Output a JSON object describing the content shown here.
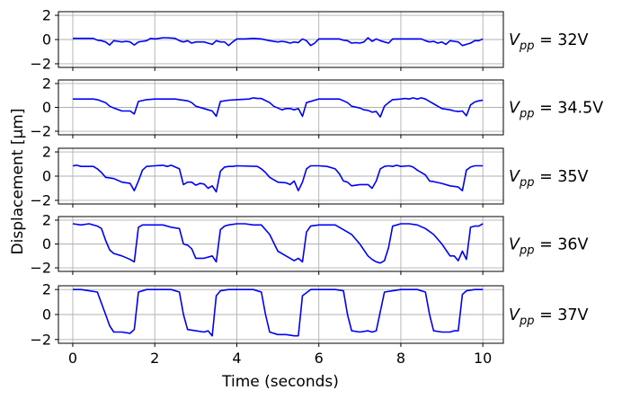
{
  "chart_data": {
    "type": "line",
    "xlabel": "Time (seconds)",
    "ylabel": "Displacement [μm]",
    "xlim": [
      -0.35,
      10.5
    ],
    "xticks": [
      0,
      2,
      4,
      6,
      8,
      10
    ],
    "ylim": [
      -2.3,
      2.3
    ],
    "yticks": [
      -2,
      0,
      2
    ],
    "ytick_labels": [
      "−2",
      "0",
      "2"
    ],
    "grid": true,
    "line_color": "#0000ff",
    "panels": [
      {
        "label_base": "V",
        "label_sub": "pp",
        "label_value": " = 32V",
        "series": {
          "x": [
            0,
            0.5,
            0.6,
            0.7,
            0.8,
            0.9,
            1.0,
            1.1,
            1.2,
            1.3,
            1.4,
            1.5,
            1.6,
            1.7,
            1.8,
            1.9,
            2.0,
            2.1,
            2.2,
            2.3,
            2.5,
            2.6,
            2.7,
            2.8,
            2.9,
            3.0,
            3.2,
            3.3,
            3.4,
            3.5,
            3.6,
            3.7,
            3.8,
            3.9,
            4.0,
            4.2,
            4.4,
            4.6,
            4.8,
            5.0,
            5.1,
            5.2,
            5.3,
            5.4,
            5.5,
            5.6,
            5.7,
            5.8,
            5.9,
            6.0,
            6.5,
            6.6,
            6.7,
            6.8,
            6.9,
            7.0,
            7.1,
            7.2,
            7.3,
            7.4,
            7.5,
            7.6,
            7.7,
            7.8,
            8.0,
            8.5,
            8.6,
            8.7,
            8.8,
            8.9,
            9.0,
            9.1,
            9.2,
            9.3,
            9.4,
            9.5,
            9.6,
            9.7,
            9.8,
            9.9,
            10.0
          ],
          "y": [
            0.1,
            0.1,
            -0.05,
            -0.1,
            -0.2,
            -0.45,
            -0.1,
            -0.15,
            -0.2,
            -0.15,
            -0.2,
            -0.45,
            -0.2,
            -0.15,
            -0.1,
            0.1,
            0.05,
            0.1,
            0.15,
            0.15,
            0.1,
            -0.1,
            -0.2,
            -0.1,
            -0.3,
            -0.2,
            -0.2,
            -0.3,
            -0.4,
            -0.1,
            -0.2,
            -0.2,
            -0.5,
            -0.2,
            0.05,
            0.05,
            0.1,
            0.05,
            -0.1,
            -0.2,
            -0.15,
            -0.2,
            -0.3,
            -0.2,
            -0.25,
            0.05,
            -0.1,
            -0.5,
            -0.3,
            0.05,
            0.05,
            -0.05,
            -0.1,
            -0.3,
            -0.25,
            -0.3,
            -0.2,
            0.15,
            -0.15,
            0.05,
            -0.1,
            -0.2,
            -0.3,
            0.05,
            0.05,
            0.05,
            -0.1,
            -0.2,
            -0.15,
            -0.3,
            -0.2,
            -0.4,
            -0.1,
            -0.15,
            -0.2,
            -0.5,
            -0.4,
            -0.3,
            -0.1,
            -0.1,
            0.05
          ]
        }
      },
      {
        "label_base": "V",
        "label_sub": "pp",
        "label_value": " = 34.5V",
        "series": {
          "x": [
            0,
            0.5,
            0.6,
            0.8,
            0.9,
            1.0,
            1.2,
            1.3,
            1.4,
            1.5,
            1.6,
            1.8,
            2.0,
            2.5,
            2.6,
            2.8,
            2.9,
            3.0,
            3.2,
            3.3,
            3.4,
            3.5,
            3.6,
            3.8,
            4.0,
            4.3,
            4.4,
            4.5,
            4.6,
            4.8,
            4.9,
            5.0,
            5.1,
            5.2,
            5.3,
            5.4,
            5.5,
            5.6,
            5.7,
            5.9,
            6.0,
            6.5,
            6.6,
            6.7,
            6.8,
            7.0,
            7.1,
            7.2,
            7.3,
            7.4,
            7.5,
            7.6,
            7.7,
            7.8,
            8.0,
            8.1,
            8.2,
            8.3,
            8.4,
            8.5,
            8.6,
            8.7,
            8.8,
            8.9,
            9.0,
            9.2,
            9.3,
            9.4,
            9.5,
            9.6,
            9.7,
            9.8,
            9.9,
            10.0
          ],
          "y": [
            0.7,
            0.7,
            0.65,
            0.4,
            0.1,
            -0.05,
            -0.3,
            -0.3,
            -0.3,
            -0.55,
            0.5,
            0.65,
            0.7,
            0.7,
            0.65,
            0.55,
            0.4,
            0.1,
            -0.1,
            -0.2,
            -0.3,
            -0.75,
            0.5,
            0.6,
            0.65,
            0.7,
            0.8,
            0.75,
            0.75,
            0.4,
            0.1,
            -0.05,
            -0.2,
            -0.1,
            -0.1,
            -0.2,
            -0.1,
            -0.75,
            0.4,
            0.6,
            0.7,
            0.7,
            0.55,
            0.4,
            0.1,
            -0.05,
            -0.2,
            -0.25,
            -0.4,
            -0.35,
            -0.8,
            0.1,
            0.4,
            0.65,
            0.7,
            0.75,
            0.7,
            0.8,
            0.7,
            0.8,
            0.7,
            0.5,
            0.3,
            0.1,
            -0.1,
            -0.2,
            -0.3,
            -0.35,
            -0.3,
            -0.7,
            0.2,
            0.45,
            0.55,
            0.6
          ]
        }
      },
      {
        "label_base": "V",
        "label_sub": "pp",
        "label_value": " = 35V",
        "series": {
          "x": [
            0,
            0.1,
            0.2,
            0.5,
            0.6,
            0.7,
            0.8,
            1.0,
            1.2,
            1.4,
            1.5,
            1.6,
            1.7,
            1.8,
            2.0,
            2.2,
            2.3,
            2.4,
            2.6,
            2.7,
            2.8,
            2.9,
            3.0,
            3.1,
            3.2,
            3.3,
            3.4,
            3.5,
            3.6,
            3.7,
            3.8,
            3.9,
            4.0,
            4.5,
            4.6,
            4.7,
            4.8,
            5.0,
            5.2,
            5.3,
            5.4,
            5.5,
            5.6,
            5.7,
            5.8,
            5.9,
            6.0,
            6.2,
            6.4,
            6.5,
            6.6,
            6.7,
            6.8,
            7.0,
            7.2,
            7.3,
            7.4,
            7.5,
            7.6,
            7.7,
            7.8,
            7.9,
            8.0,
            8.2,
            8.3,
            8.4,
            8.6,
            8.7,
            8.8,
            9.0,
            9.2,
            9.4,
            9.5,
            9.6,
            9.7,
            9.8,
            9.9,
            10.0
          ],
          "y": [
            0.85,
            0.9,
            0.8,
            0.8,
            0.6,
            0.3,
            -0.1,
            -0.2,
            -0.5,
            -0.6,
            -1.2,
            -0.4,
            0.5,
            0.8,
            0.85,
            0.9,
            0.8,
            0.9,
            0.6,
            -0.7,
            -0.5,
            -0.5,
            -0.75,
            -0.6,
            -0.65,
            -1.0,
            -0.8,
            -1.3,
            0.4,
            0.75,
            0.8,
            0.8,
            0.85,
            0.8,
            0.6,
            0.3,
            -0.1,
            -0.5,
            -0.55,
            -0.7,
            -0.4,
            -1.2,
            -0.5,
            0.6,
            0.85,
            0.85,
            0.85,
            0.8,
            0.6,
            0.2,
            -0.4,
            -0.5,
            -0.8,
            -0.7,
            -0.7,
            -1.0,
            -0.4,
            0.6,
            0.8,
            0.85,
            0.8,
            0.9,
            0.8,
            0.85,
            0.75,
            0.5,
            0.1,
            -0.4,
            -0.45,
            -0.6,
            -0.8,
            -0.9,
            -1.2,
            0.5,
            0.75,
            0.85,
            0.85,
            0.85
          ]
        }
      },
      {
        "label_base": "V",
        "label_sub": "pp",
        "label_value": " = 36V",
        "series": {
          "x": [
            0,
            0.2,
            0.4,
            0.6,
            0.7,
            0.8,
            0.9,
            1.0,
            1.2,
            1.4,
            1.5,
            1.6,
            1.7,
            1.8,
            2.0,
            2.2,
            2.4,
            2.6,
            2.7,
            2.8,
            2.9,
            3.0,
            3.2,
            3.4,
            3.5,
            3.6,
            3.7,
            3.8,
            4.0,
            4.2,
            4.4,
            4.6,
            4.8,
            5.0,
            5.2,
            5.4,
            5.5,
            5.6,
            5.7,
            5.8,
            6.0,
            6.2,
            6.4,
            6.6,
            6.8,
            7.0,
            7.2,
            7.3,
            7.4,
            7.5,
            7.6,
            7.7,
            7.8,
            7.9,
            8.0,
            8.2,
            8.4,
            8.6,
            8.8,
            9.0,
            9.2,
            9.3,
            9.4,
            9.5,
            9.6,
            9.7,
            9.8,
            9.9,
            10.0
          ],
          "y": [
            1.7,
            1.6,
            1.7,
            1.5,
            1.3,
            0.3,
            -0.5,
            -0.8,
            -1.0,
            -1.3,
            -1.5,
            1.4,
            1.6,
            1.6,
            1.6,
            1.6,
            1.4,
            1.3,
            0.0,
            -0.1,
            -0.4,
            -1.2,
            -1.2,
            -1.0,
            -1.5,
            1.2,
            1.5,
            1.6,
            1.7,
            1.7,
            1.6,
            1.6,
            0.8,
            -0.6,
            -1.0,
            -1.4,
            -1.2,
            -1.5,
            1.0,
            1.5,
            1.6,
            1.6,
            1.6,
            1.2,
            0.8,
            0.0,
            -1.0,
            -1.3,
            -1.5,
            -1.6,
            -1.4,
            -0.3,
            1.5,
            1.6,
            1.7,
            1.7,
            1.6,
            1.3,
            0.8,
            0.0,
            -1.0,
            -1.0,
            -1.4,
            -0.6,
            -1.3,
            1.4,
            1.5,
            1.5,
            1.7
          ]
        }
      },
      {
        "label_base": "V",
        "label_sub": "pp",
        "label_value": " = 37V",
        "series": {
          "x": [
            0,
            0.2,
            0.4,
            0.6,
            0.8,
            0.9,
            1.0,
            1.2,
            1.4,
            1.5,
            1.6,
            1.8,
            2.0,
            2.2,
            2.4,
            2.6,
            2.7,
            2.8,
            3.0,
            3.2,
            3.3,
            3.4,
            3.5,
            3.6,
            3.8,
            4.0,
            4.2,
            4.4,
            4.6,
            4.7,
            4.8,
            5.0,
            5.2,
            5.4,
            5.5,
            5.6,
            5.8,
            6.0,
            6.2,
            6.4,
            6.6,
            6.7,
            6.8,
            7.0,
            7.2,
            7.3,
            7.4,
            7.6,
            7.8,
            8.0,
            8.2,
            8.4,
            8.6,
            8.7,
            8.8,
            9.0,
            9.2,
            9.3,
            9.4,
            9.5,
            9.6,
            9.8,
            10.0
          ],
          "y": [
            2.0,
            2.0,
            1.9,
            1.8,
            0.0,
            -0.9,
            -1.4,
            -1.4,
            -1.5,
            -1.2,
            1.8,
            2.0,
            2.0,
            2.0,
            2.0,
            1.8,
            0.0,
            -1.2,
            -1.3,
            -1.4,
            -1.3,
            -1.7,
            1.5,
            1.9,
            2.0,
            2.0,
            2.0,
            2.0,
            1.8,
            0.0,
            -1.4,
            -1.6,
            -1.6,
            -1.7,
            -1.7,
            1.5,
            2.0,
            2.0,
            2.0,
            2.0,
            1.9,
            0.0,
            -1.3,
            -1.4,
            -1.3,
            -1.4,
            -1.3,
            1.8,
            1.9,
            2.0,
            2.0,
            2.0,
            1.8,
            0.0,
            -1.3,
            -1.4,
            -1.4,
            -1.3,
            -1.3,
            1.6,
            1.9,
            2.0,
            2.0
          ]
        }
      }
    ]
  }
}
